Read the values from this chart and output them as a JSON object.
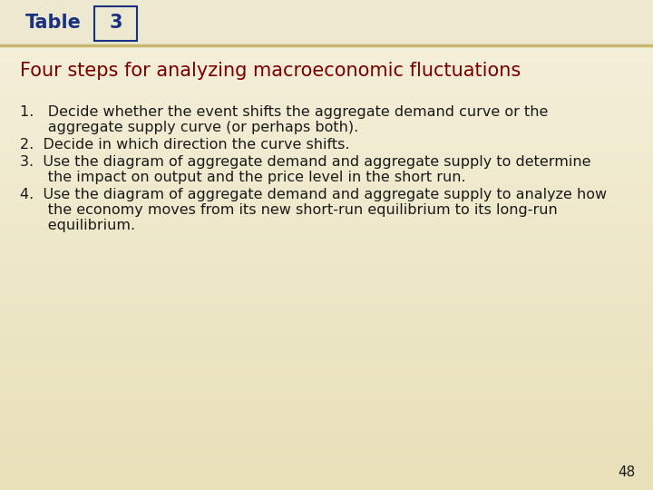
{
  "table_label": "Table",
  "table_number": "3",
  "title": "Four steps for analyzing macroeconomic fluctuations",
  "items": [
    {
      "lines": [
        "1.   Decide whether the event shifts the aggregate demand curve or the",
        "      aggregate supply curve (or perhaps both)."
      ]
    },
    {
      "lines": [
        "2.  Decide in which direction the curve shifts."
      ]
    },
    {
      "lines": [
        "3.  Use the diagram of aggregate demand and aggregate supply to determine",
        "      the impact on output and the price level in the short run."
      ]
    },
    {
      "lines": [
        "4.  Use the diagram of aggregate demand and aggregate supply to analyze how",
        "      the economy moves from its new short-run equilibrium to its long-run",
        "      equilibrium."
      ]
    }
  ],
  "page_number": "48",
  "bg_color": "#f0ead5",
  "header_bg": "#ede8d0",
  "table_label_color": "#1a3080",
  "table_number_color": "#1a3080",
  "box_border_color": "#1a3080",
  "title_color": "#7a0000",
  "body_text_color": "#1a1a1a",
  "divider_color": "#c8b870",
  "title_fontsize": 15,
  "body_fontsize": 11.5,
  "header_fontsize": 15,
  "page_num_fontsize": 11
}
